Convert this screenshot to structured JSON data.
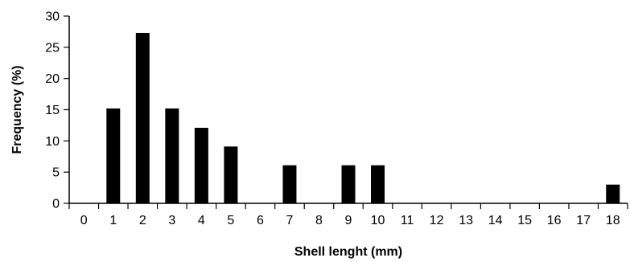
{
  "chart_data": {
    "type": "bar",
    "title": "",
    "xlabel": "Shell lenght (mm)",
    "ylabel": "Frequency (%)",
    "categories": [
      "0",
      "1",
      "2",
      "3",
      "4",
      "5",
      "6",
      "7",
      "8",
      "9",
      "10",
      "11",
      "12",
      "13",
      "14",
      "15",
      "16",
      "17",
      "18"
    ],
    "values": [
      0,
      15.2,
      27.3,
      15.2,
      12.1,
      9.1,
      0,
      6.1,
      0,
      6.1,
      6.1,
      0,
      0,
      0,
      0,
      0,
      0,
      0,
      3.0
    ],
    "ylim": [
      0,
      30
    ],
    "yticks": [
      "0",
      "5",
      "10",
      "15",
      "20",
      "25",
      "30"
    ],
    "grid": false,
    "legend": "none",
    "bar_color": "#000000",
    "axis_color": "#000000"
  }
}
